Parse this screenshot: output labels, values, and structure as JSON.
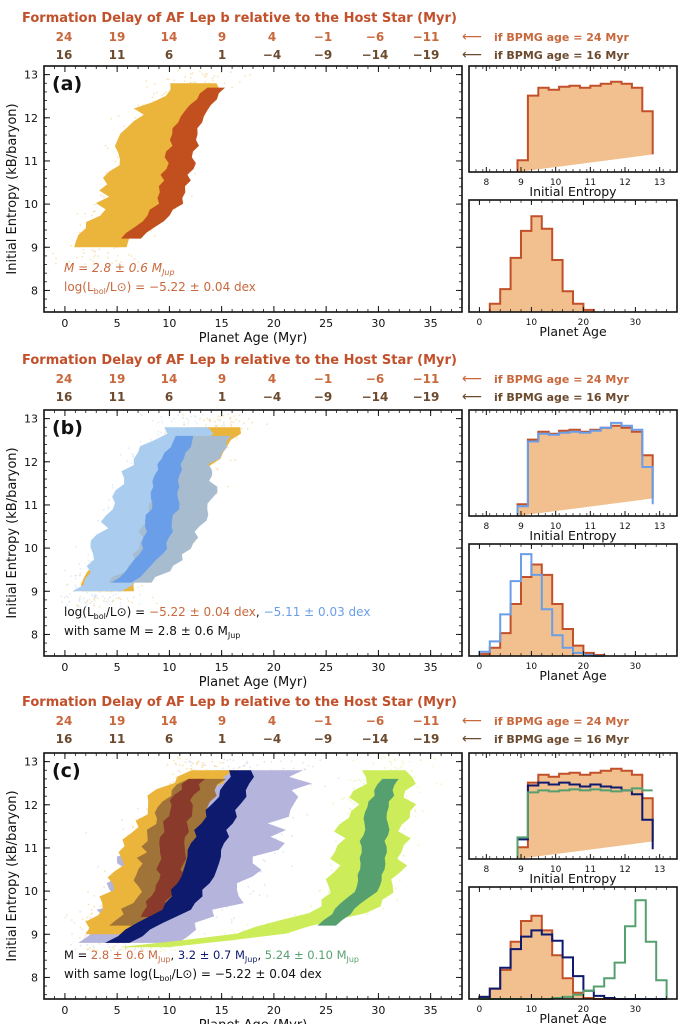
{
  "header": {
    "title": "Formation Delay of AF Lep b relative to the Host Star (Myr)",
    "row_24": [
      "24",
      "19",
      "14",
      "9",
      "4",
      "−1",
      "−6",
      "−11"
    ],
    "row_16": [
      "16",
      "11",
      "6",
      "1",
      "−4",
      "−9",
      "−14",
      "−19"
    ],
    "arrow": "⟵",
    "label_24": "if BPMG age = 24 Myr",
    "label_16": "if BPMG age = 16 Myr"
  },
  "colors": {
    "orange_dark": "#c2502a",
    "orange_text": "#c8683c",
    "brown_text": "#6b4a2e",
    "gold": "#ebb43a",
    "rust": "#c2501e",
    "hist_fill": "#f2c08e",
    "blue_light": "#aacdef",
    "blue_mid": "#6a9ee8",
    "slate": "#a8bcd0",
    "navy": "#0d1a6e",
    "lavender": "#b4b4dc",
    "lime": "#ccec5a",
    "green": "#56a070",
    "maroon": "#8a3a2a",
    "olive": "#a07438"
  },
  "panels": [
    {
      "letter": "(a)",
      "ann1": "M = 2.8 ± 0.6 M",
      "ann1_sub": "Jup",
      "ann2": "log(L",
      "ann2_sub": "bol",
      "ann2_end": "/L⊙) = −5.22 ± 0.04 dex"
    },
    {
      "letter": "(b)",
      "ann1a": "log(L",
      "ann1a_sub": "bol",
      "ann1b": "/L⊙) = ",
      "ann1c": "−5.22 ± 0.04 dex",
      "ann1d": ", ",
      "ann1e": "−5.11 ± 0.03 dex",
      "ann2": "with same M = 2.8 ± 0.6 M",
      "ann2_sub": "Jup"
    },
    {
      "letter": "(c)",
      "ann1a": "M = ",
      "ann1b": "2.8 ± 0.6 M",
      "ann1b_sub": "Jup",
      "ann1c": ", ",
      "ann1d": "3.2 ± 0.7 M",
      "ann1d_sub": "Jup",
      "ann1e": ", ",
      "ann1f": "5.24 ± 0.10 M",
      "ann1f_sub": "Jup",
      "ann2": "with same log(L",
      "ann2_sub": "bol",
      "ann2_end": "/L⊙) = −5.22 ± 0.04 dex"
    }
  ],
  "chart_data": [
    {
      "type": "heatmap",
      "panel": "(a)",
      "xlabel": "Planet Age (Myr)",
      "ylabel": "Initial Entropy (kB/baryon)",
      "xlim": [
        -2,
        38
      ],
      "ylim": [
        7.5,
        13.2
      ],
      "xticks": [
        "0",
        "5",
        "10",
        "15",
        "20",
        "25",
        "30",
        "35"
      ],
      "yticks": [
        "8",
        "9",
        "10",
        "11",
        "12",
        "13"
      ],
      "series": [
        {
          "color": "#ebb43a",
          "ridge": [
            [
              9.0,
              3.5
            ],
            [
              9.8,
              6.0
            ],
            [
              10.6,
              7.5
            ],
            [
              11.4,
              8.5
            ],
            [
              12.2,
              10.0
            ],
            [
              12.8,
              13.0
            ]
          ],
          "halfwidth": 3.4
        },
        {
          "color": "#c2501e",
          "ridge": [
            [
              9.2,
              6.5
            ],
            [
              10.0,
              10.0
            ],
            [
              11.0,
              11.0
            ],
            [
              12.0,
              12.0
            ],
            [
              12.7,
              14.5
            ]
          ],
          "halfwidth": 1.3
        }
      ]
    },
    {
      "type": "bar",
      "panel": "(a) initial entropy histogram",
      "xlabel": "Initial Entropy",
      "xlim": [
        7.5,
        13.5
      ],
      "xticks": [
        "8",
        "9",
        "10",
        "11",
        "12",
        "13"
      ],
      "bin_edges": [
        8.9,
        9.2,
        9.5,
        9.8,
        10.1,
        10.4,
        10.7,
        11.0,
        11.3,
        11.6,
        11.9,
        12.2,
        12.5,
        12.8
      ],
      "series": [
        {
          "color": "#c2502a",
          "fill": "#f2c08e",
          "values": [
            0.12,
            0.78,
            0.86,
            0.84,
            0.87,
            0.88,
            0.86,
            0.88,
            0.9,
            0.92,
            0.9,
            0.86,
            0.62,
            0.18
          ]
        }
      ]
    },
    {
      "type": "bar",
      "panel": "(a) planet age histogram",
      "xlabel": "Planet Age",
      "xlim": [
        -2,
        38
      ],
      "xticks": [
        "0",
        "10",
        "20",
        "30"
      ],
      "bin_edges": [
        2,
        4,
        6,
        8,
        10,
        12,
        14,
        16,
        18,
        20,
        22
      ],
      "series": [
        {
          "color": "#c2502a",
          "fill": "#f2c08e",
          "values": [
            0.08,
            0.22,
            0.52,
            0.78,
            0.92,
            0.8,
            0.5,
            0.2,
            0.08,
            0.02
          ]
        }
      ]
    },
    {
      "type": "heatmap",
      "panel": "(b)",
      "xlabel": "Planet Age (Myr)",
      "ylabel": "Initial Entropy (kB/baryon)",
      "xlim": [
        -2,
        38
      ],
      "ylim": [
        7.5,
        13.2
      ],
      "series": [
        {
          "color": "#ebb43a",
          "ridge": [
            [
              9.0,
              4.0
            ],
            [
              9.8,
              6.5
            ],
            [
              10.6,
              8.5
            ],
            [
              11.4,
              10.0
            ],
            [
              12.2,
              12.0
            ],
            [
              12.8,
              15.0
            ]
          ],
          "halfwidth": 3.4
        },
        {
          "color": "#aacdef",
          "ridge": [
            [
              9.0,
              3.0
            ],
            [
              9.8,
              5.5
            ],
            [
              10.6,
              7.0
            ],
            [
              11.4,
              8.0
            ],
            [
              12.2,
              9.5
            ],
            [
              12.8,
              12.0
            ]
          ],
          "halfwidth": 3.2
        },
        {
          "color": "#a8bcd0",
          "ridge": [
            [
              9.2,
              6.5
            ],
            [
              10.0,
              9.5
            ],
            [
              11.0,
              11.0
            ],
            [
              12.0,
              12.0
            ],
            [
              12.6,
              14.0
            ]
          ],
          "halfwidth": 2.8
        },
        {
          "color": "#6a9ee8",
          "ridge": [
            [
              9.2,
              5.5
            ],
            [
              10.0,
              8.5
            ],
            [
              11.0,
              9.5
            ],
            [
              12.0,
              10.0
            ],
            [
              12.6,
              11.5
            ]
          ],
          "halfwidth": 1.3
        }
      ]
    },
    {
      "type": "bar",
      "panel": "(b) initial entropy histogram",
      "xlabel": "Initial Entropy",
      "xlim": [
        7.5,
        13.5
      ],
      "xticks": [
        "8",
        "9",
        "10",
        "11",
        "12",
        "13"
      ],
      "bin_edges": [
        8.9,
        9.2,
        9.5,
        9.8,
        10.1,
        10.4,
        10.7,
        11.0,
        11.3,
        11.6,
        11.9,
        12.2,
        12.5,
        12.8
      ],
      "series": [
        {
          "color": "#c2502a",
          "fill": "#f2c08e",
          "values": [
            0.12,
            0.78,
            0.86,
            0.84,
            0.87,
            0.88,
            0.86,
            0.88,
            0.9,
            0.92,
            0.9,
            0.86,
            0.62,
            0.18
          ]
        },
        {
          "color": "#6a9ee8",
          "values": [
            0.1,
            0.76,
            0.84,
            0.83,
            0.85,
            0.86,
            0.85,
            0.87,
            0.9,
            0.95,
            0.92,
            0.88,
            0.5,
            0.12
          ]
        }
      ]
    },
    {
      "type": "bar",
      "panel": "(b) planet age histogram",
      "xlabel": "Planet Age",
      "xlim": [
        -2,
        38
      ],
      "xticks": [
        "0",
        "10",
        "20",
        "30"
      ],
      "bin_edges": [
        0,
        2,
        4,
        6,
        8,
        10,
        12,
        14,
        16,
        18,
        20,
        22,
        24
      ],
      "series": [
        {
          "color": "#c2502a",
          "fill": "#f2c08e",
          "values": [
            0.02,
            0.08,
            0.22,
            0.5,
            0.76,
            0.88,
            0.78,
            0.5,
            0.26,
            0.1,
            0.03,
            0.01
          ]
        },
        {
          "color": "#6a9ee8",
          "values": [
            0.04,
            0.14,
            0.4,
            0.72,
            0.98,
            0.78,
            0.45,
            0.2,
            0.08,
            0.03,
            0.01,
            0.0
          ]
        }
      ]
    },
    {
      "type": "heatmap",
      "panel": "(c)",
      "xlabel": "Planet Age (Myr)",
      "ylabel": "Initial Entropy (kB/baryon)",
      "xlim": [
        -2,
        38
      ],
      "ylim": [
        7.5,
        13.2
      ],
      "series": [
        {
          "color": "#b4b4dc",
          "ridge": [
            [
              8.8,
              5.0
            ],
            [
              9.6,
              10.0
            ],
            [
              10.6,
              12.5
            ],
            [
              11.4,
              14.0
            ],
            [
              12.2,
              16.0
            ],
            [
              12.8,
              19.0
            ]
          ],
          "halfwidth": 6.5
        },
        {
          "color": "#ccec5a",
          "ridge": [
            [
              8.7,
              8.0
            ],
            [
              9.0,
              18.0
            ],
            [
              9.6,
              27.0
            ],
            [
              10.6,
              29.0
            ],
            [
              11.4,
              29.5
            ],
            [
              12.2,
              30.5
            ],
            [
              12.8,
              31.0
            ]
          ],
          "halfwidth": 3.2
        },
        {
          "color": "#ebb43a",
          "ridge": [
            [
              9.0,
              4.0
            ],
            [
              9.8,
              6.5
            ],
            [
              10.6,
              8.5
            ],
            [
              11.4,
              9.5
            ],
            [
              12.2,
              11.0
            ],
            [
              12.8,
              13.5
            ]
          ],
          "halfwidth": 3.2
        },
        {
          "color": "#a07438",
          "ridge": [
            [
              9.2,
              6.5
            ],
            [
              10.0,
              9.5
            ],
            [
              11.0,
              10.5
            ],
            [
              12.0,
              11.5
            ],
            [
              12.6,
              13.5
            ]
          ],
          "halfwidth": 2.8
        },
        {
          "color": "#8a3a2a",
          "ridge": [
            [
              9.4,
              8.0
            ],
            [
              10.2,
              10.0
            ],
            [
              11.2,
              10.5
            ],
            [
              12.0,
              11.0
            ],
            [
              12.6,
              12.5
            ]
          ],
          "halfwidth": 1.2
        },
        {
          "color": "#0d1a6e",
          "ridge": [
            [
              8.8,
              5.0
            ],
            [
              9.6,
              11.0
            ],
            [
              10.6,
              13.0
            ],
            [
              11.4,
              14.0
            ],
            [
              12.2,
              16.0
            ],
            [
              12.8,
              17.0
            ]
          ],
          "halfwidth": 1.6
        },
        {
          "color": "#56a070",
          "ridge": [
            [
              9.2,
              25.0
            ],
            [
              10.0,
              29.0
            ],
            [
              11.0,
              29.5
            ],
            [
              12.0,
              30.0
            ],
            [
              12.6,
              31.0
            ]
          ],
          "halfwidth": 1.2
        }
      ]
    },
    {
      "type": "bar",
      "panel": "(c) initial entropy histogram",
      "xlabel": "Initial Entropy",
      "xlim": [
        7.5,
        13.5
      ],
      "xticks": [
        "8",
        "9",
        "10",
        "11",
        "12",
        "13"
      ],
      "bin_edges": [
        8.9,
        9.2,
        9.5,
        9.8,
        10.1,
        10.4,
        10.7,
        11.0,
        11.3,
        11.6,
        11.9,
        12.2,
        12.5,
        12.8
      ],
      "series": [
        {
          "color": "#c2502a",
          "fill": "#f2c08e",
          "values": [
            0.12,
            0.78,
            0.86,
            0.84,
            0.87,
            0.88,
            0.86,
            0.88,
            0.9,
            0.92,
            0.9,
            0.86,
            0.62,
            0.18
          ]
        },
        {
          "color": "#0d1a6e",
          "values": [
            0.2,
            0.75,
            0.78,
            0.76,
            0.78,
            0.76,
            0.74,
            0.76,
            0.74,
            0.73,
            0.7,
            0.66,
            0.4,
            0.1
          ]
        },
        {
          "color": "#56a070",
          "values": [
            0.22,
            0.68,
            0.7,
            0.69,
            0.7,
            0.71,
            0.7,
            0.71,
            0.7,
            0.69,
            0.7,
            0.72,
            0.7,
            0.7
          ]
        }
      ]
    },
    {
      "type": "bar",
      "panel": "(c) planet age histogram",
      "xlabel": "Planet Age",
      "xlim": [
        -2,
        38
      ],
      "xticks": [
        "0",
        "10",
        "20",
        "30"
      ],
      "bin_edges": [
        0,
        2,
        4,
        6,
        8,
        10,
        12,
        14,
        16,
        18,
        20,
        22,
        24,
        26,
        28,
        30,
        32,
        34,
        36
      ],
      "series": [
        {
          "color": "#c2502a",
          "fill": "#f2c08e",
          "values": [
            0.02,
            0.1,
            0.28,
            0.55,
            0.75,
            0.8,
            0.66,
            0.42,
            0.2,
            0.06,
            0.01,
            0.0,
            0.0,
            0.0,
            0.0,
            0.0,
            0.0,
            0.0
          ]
        },
        {
          "color": "#0d1a6e",
          "values": [
            0.02,
            0.1,
            0.3,
            0.48,
            0.6,
            0.66,
            0.62,
            0.56,
            0.4,
            0.22,
            0.08,
            0.03,
            0.01,
            0.0,
            0.0,
            0.0,
            0.0,
            0.0
          ]
        },
        {
          "color": "#56a070",
          "values": [
            0.0,
            0.0,
            0.0,
            0.0,
            0.0,
            0.0,
            0.0,
            0.01,
            0.02,
            0.04,
            0.08,
            0.12,
            0.2,
            0.35,
            0.7,
            0.95,
            0.55,
            0.18
          ]
        }
      ]
    }
  ]
}
